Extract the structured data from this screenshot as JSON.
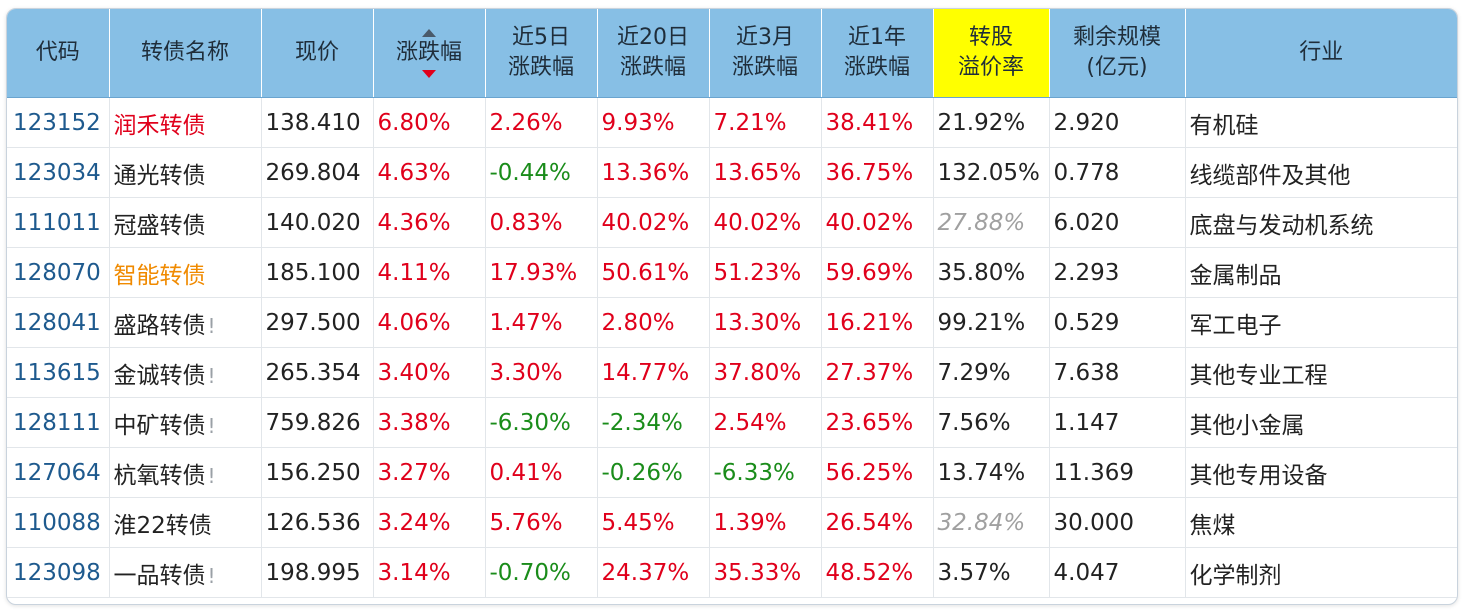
{
  "columns": [
    {
      "key": "code",
      "label_lines": [
        "代码"
      ]
    },
    {
      "key": "name",
      "label_lines": [
        "转债名称"
      ]
    },
    {
      "key": "price",
      "label_lines": [
        "现价"
      ]
    },
    {
      "key": "change",
      "label_lines": [
        "涨跌幅"
      ],
      "sorted": "desc"
    },
    {
      "key": "d5",
      "label_lines": [
        "近5日",
        "涨跌幅"
      ]
    },
    {
      "key": "d20",
      "label_lines": [
        "近20日",
        "涨跌幅"
      ]
    },
    {
      "key": "m3",
      "label_lines": [
        "近3月",
        "涨跌幅"
      ]
    },
    {
      "key": "y1",
      "label_lines": [
        "近1年",
        "涨跌幅"
      ]
    },
    {
      "key": "premium",
      "label_lines": [
        "转股",
        "溢价率"
      ],
      "highlight": "#ffff00"
    },
    {
      "key": "size",
      "label_lines": [
        "剩余规模",
        "(亿元)"
      ]
    },
    {
      "key": "industry",
      "label_lines": [
        "行业"
      ]
    }
  ],
  "colors": {
    "up": "#e0001b",
    "down": "#1a8c1a",
    "muted": "#a0a0a0",
    "code": "#1e5a8e",
    "header_bg": "#87bfe5",
    "highlight": "#ffff00",
    "orange": "#f08a00"
  },
  "rows": [
    {
      "code": "123152",
      "name": "润禾转债",
      "name_color": "red",
      "warn": false,
      "price": "138.410",
      "change": "6.80%",
      "d5": "2.26%",
      "d20": "9.93%",
      "m3": "7.21%",
      "y1": "38.41%",
      "premium": "21.92%",
      "premium_muted": false,
      "size": "2.920",
      "industry": "有机硅"
    },
    {
      "code": "123034",
      "name": "通光转债",
      "name_color": "",
      "warn": false,
      "price": "269.804",
      "change": "4.63%",
      "d5": "-0.44%",
      "d20": "13.36%",
      "m3": "13.65%",
      "y1": "36.75%",
      "premium": "132.05%",
      "premium_muted": false,
      "size": "0.778",
      "industry": "线缆部件及其他"
    },
    {
      "code": "111011",
      "name": "冠盛转债",
      "name_color": "",
      "warn": false,
      "price": "140.020",
      "change": "4.36%",
      "d5": "0.83%",
      "d20": "40.02%",
      "m3": "40.02%",
      "y1": "40.02%",
      "premium": "27.88%",
      "premium_muted": true,
      "size": "6.020",
      "industry": "底盘与发动机系统"
    },
    {
      "code": "128070",
      "name": "智能转债",
      "name_color": "orange",
      "warn": false,
      "price": "185.100",
      "change": "4.11%",
      "d5": "17.93%",
      "d20": "50.61%",
      "m3": "51.23%",
      "y1": "59.69%",
      "premium": "35.80%",
      "premium_muted": false,
      "size": "2.293",
      "industry": "金属制品"
    },
    {
      "code": "128041",
      "name": "盛路转债",
      "name_color": "",
      "warn": true,
      "price": "297.500",
      "change": "4.06%",
      "d5": "1.47%",
      "d20": "2.80%",
      "m3": "13.30%",
      "y1": "16.21%",
      "premium": "99.21%",
      "premium_muted": false,
      "size": "0.529",
      "industry": "军工电子"
    },
    {
      "code": "113615",
      "name": "金诚转债",
      "name_color": "",
      "warn": true,
      "price": "265.354",
      "change": "3.40%",
      "d5": "3.30%",
      "d20": "14.77%",
      "m3": "37.80%",
      "y1": "27.37%",
      "premium": "7.29%",
      "premium_muted": false,
      "size": "7.638",
      "industry": "其他专业工程"
    },
    {
      "code": "128111",
      "name": "中矿转债",
      "name_color": "",
      "warn": true,
      "price": "759.826",
      "change": "3.38%",
      "d5": "-6.30%",
      "d20": "-2.34%",
      "m3": "2.54%",
      "y1": "23.65%",
      "premium": "7.56%",
      "premium_muted": false,
      "size": "1.147",
      "industry": "其他小金属"
    },
    {
      "code": "127064",
      "name": "杭氧转债",
      "name_color": "",
      "warn": true,
      "price": "156.250",
      "change": "3.27%",
      "d5": "0.41%",
      "d20": "-0.26%",
      "m3": "-6.33%",
      "y1": "56.25%",
      "premium": "13.74%",
      "premium_muted": false,
      "size": "11.369",
      "industry": "其他专用设备"
    },
    {
      "code": "110088",
      "name": "淮22转债",
      "name_color": "",
      "warn": false,
      "price": "126.536",
      "change": "3.24%",
      "d5": "5.76%",
      "d20": "5.45%",
      "m3": "1.39%",
      "y1": "26.54%",
      "premium": "32.84%",
      "premium_muted": true,
      "size": "30.000",
      "industry": "焦煤"
    },
    {
      "code": "123098",
      "name": "一品转债",
      "name_color": "",
      "warn": true,
      "price": "198.995",
      "change": "3.14%",
      "d5": "-0.70%",
      "d20": "24.37%",
      "m3": "35.33%",
      "y1": "48.52%",
      "premium": "3.57%",
      "premium_muted": false,
      "size": "4.047",
      "industry": "化学制剂"
    }
  ],
  "warn_mark": "!"
}
